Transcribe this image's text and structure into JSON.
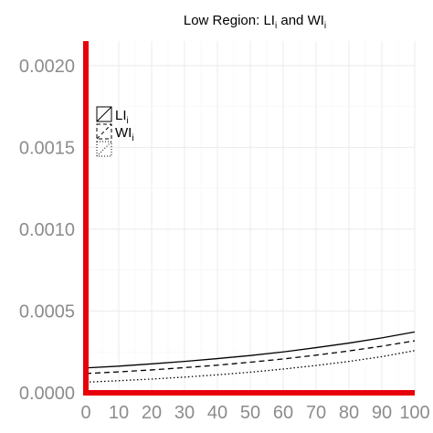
{
  "chart_data": {
    "type": "line",
    "title": {
      "prefix": "Low Region:  ",
      "term1": "LI",
      "term1_sub": "i",
      "joiner": " and ",
      "term2": "WI",
      "term2_sub": "i"
    },
    "xlabel": "",
    "ylabel": "",
    "xlim": [
      0,
      100
    ],
    "ylim": [
      0,
      0.00215
    ],
    "x_ticks": [
      0,
      10,
      20,
      30,
      40,
      50,
      60,
      70,
      80,
      90,
      100
    ],
    "x_tick_labels": [
      "0",
      "10",
      "20",
      "30",
      "40",
      "50",
      "60",
      "70",
      "80",
      "90",
      "100"
    ],
    "y_ticks": [
      0,
      0.0005,
      0.001,
      0.0015,
      0.002
    ],
    "y_tick_labels": [
      "0.0000",
      "0.0005",
      "0.0010",
      "0.0015",
      "0.0020"
    ],
    "grid": true,
    "legend_position": "top-left",
    "axis_color": "#e8000b",
    "x": [
      0,
      10,
      20,
      30,
      40,
      50,
      60,
      70,
      80,
      90,
      100
    ],
    "series": [
      {
        "name": "LI",
        "name_sub": "i",
        "style": "solid",
        "values": [
          0.000152,
          0.000163,
          0.000177,
          0.000192,
          0.000209,
          0.000228,
          0.00025,
          0.000276,
          0.000304,
          0.000336,
          0.000372
        ]
      },
      {
        "name": "WI",
        "name_sub": "i",
        "style": "dashed",
        "values": [
          0.000118,
          0.000128,
          0.00014,
          0.000154,
          0.000169,
          0.000187,
          0.000207,
          0.00023,
          0.000256,
          0.000285,
          0.000318
        ]
      },
      {
        "name": "",
        "name_sub": "",
        "style": "dotted",
        "values": [
          6.5e-05,
          7.4e-05,
          8.4e-05,
          9.6e-05,
          0.00011,
          0.000126,
          0.000145,
          0.000167,
          0.000192,
          0.000221,
          0.000258
        ]
      }
    ]
  }
}
